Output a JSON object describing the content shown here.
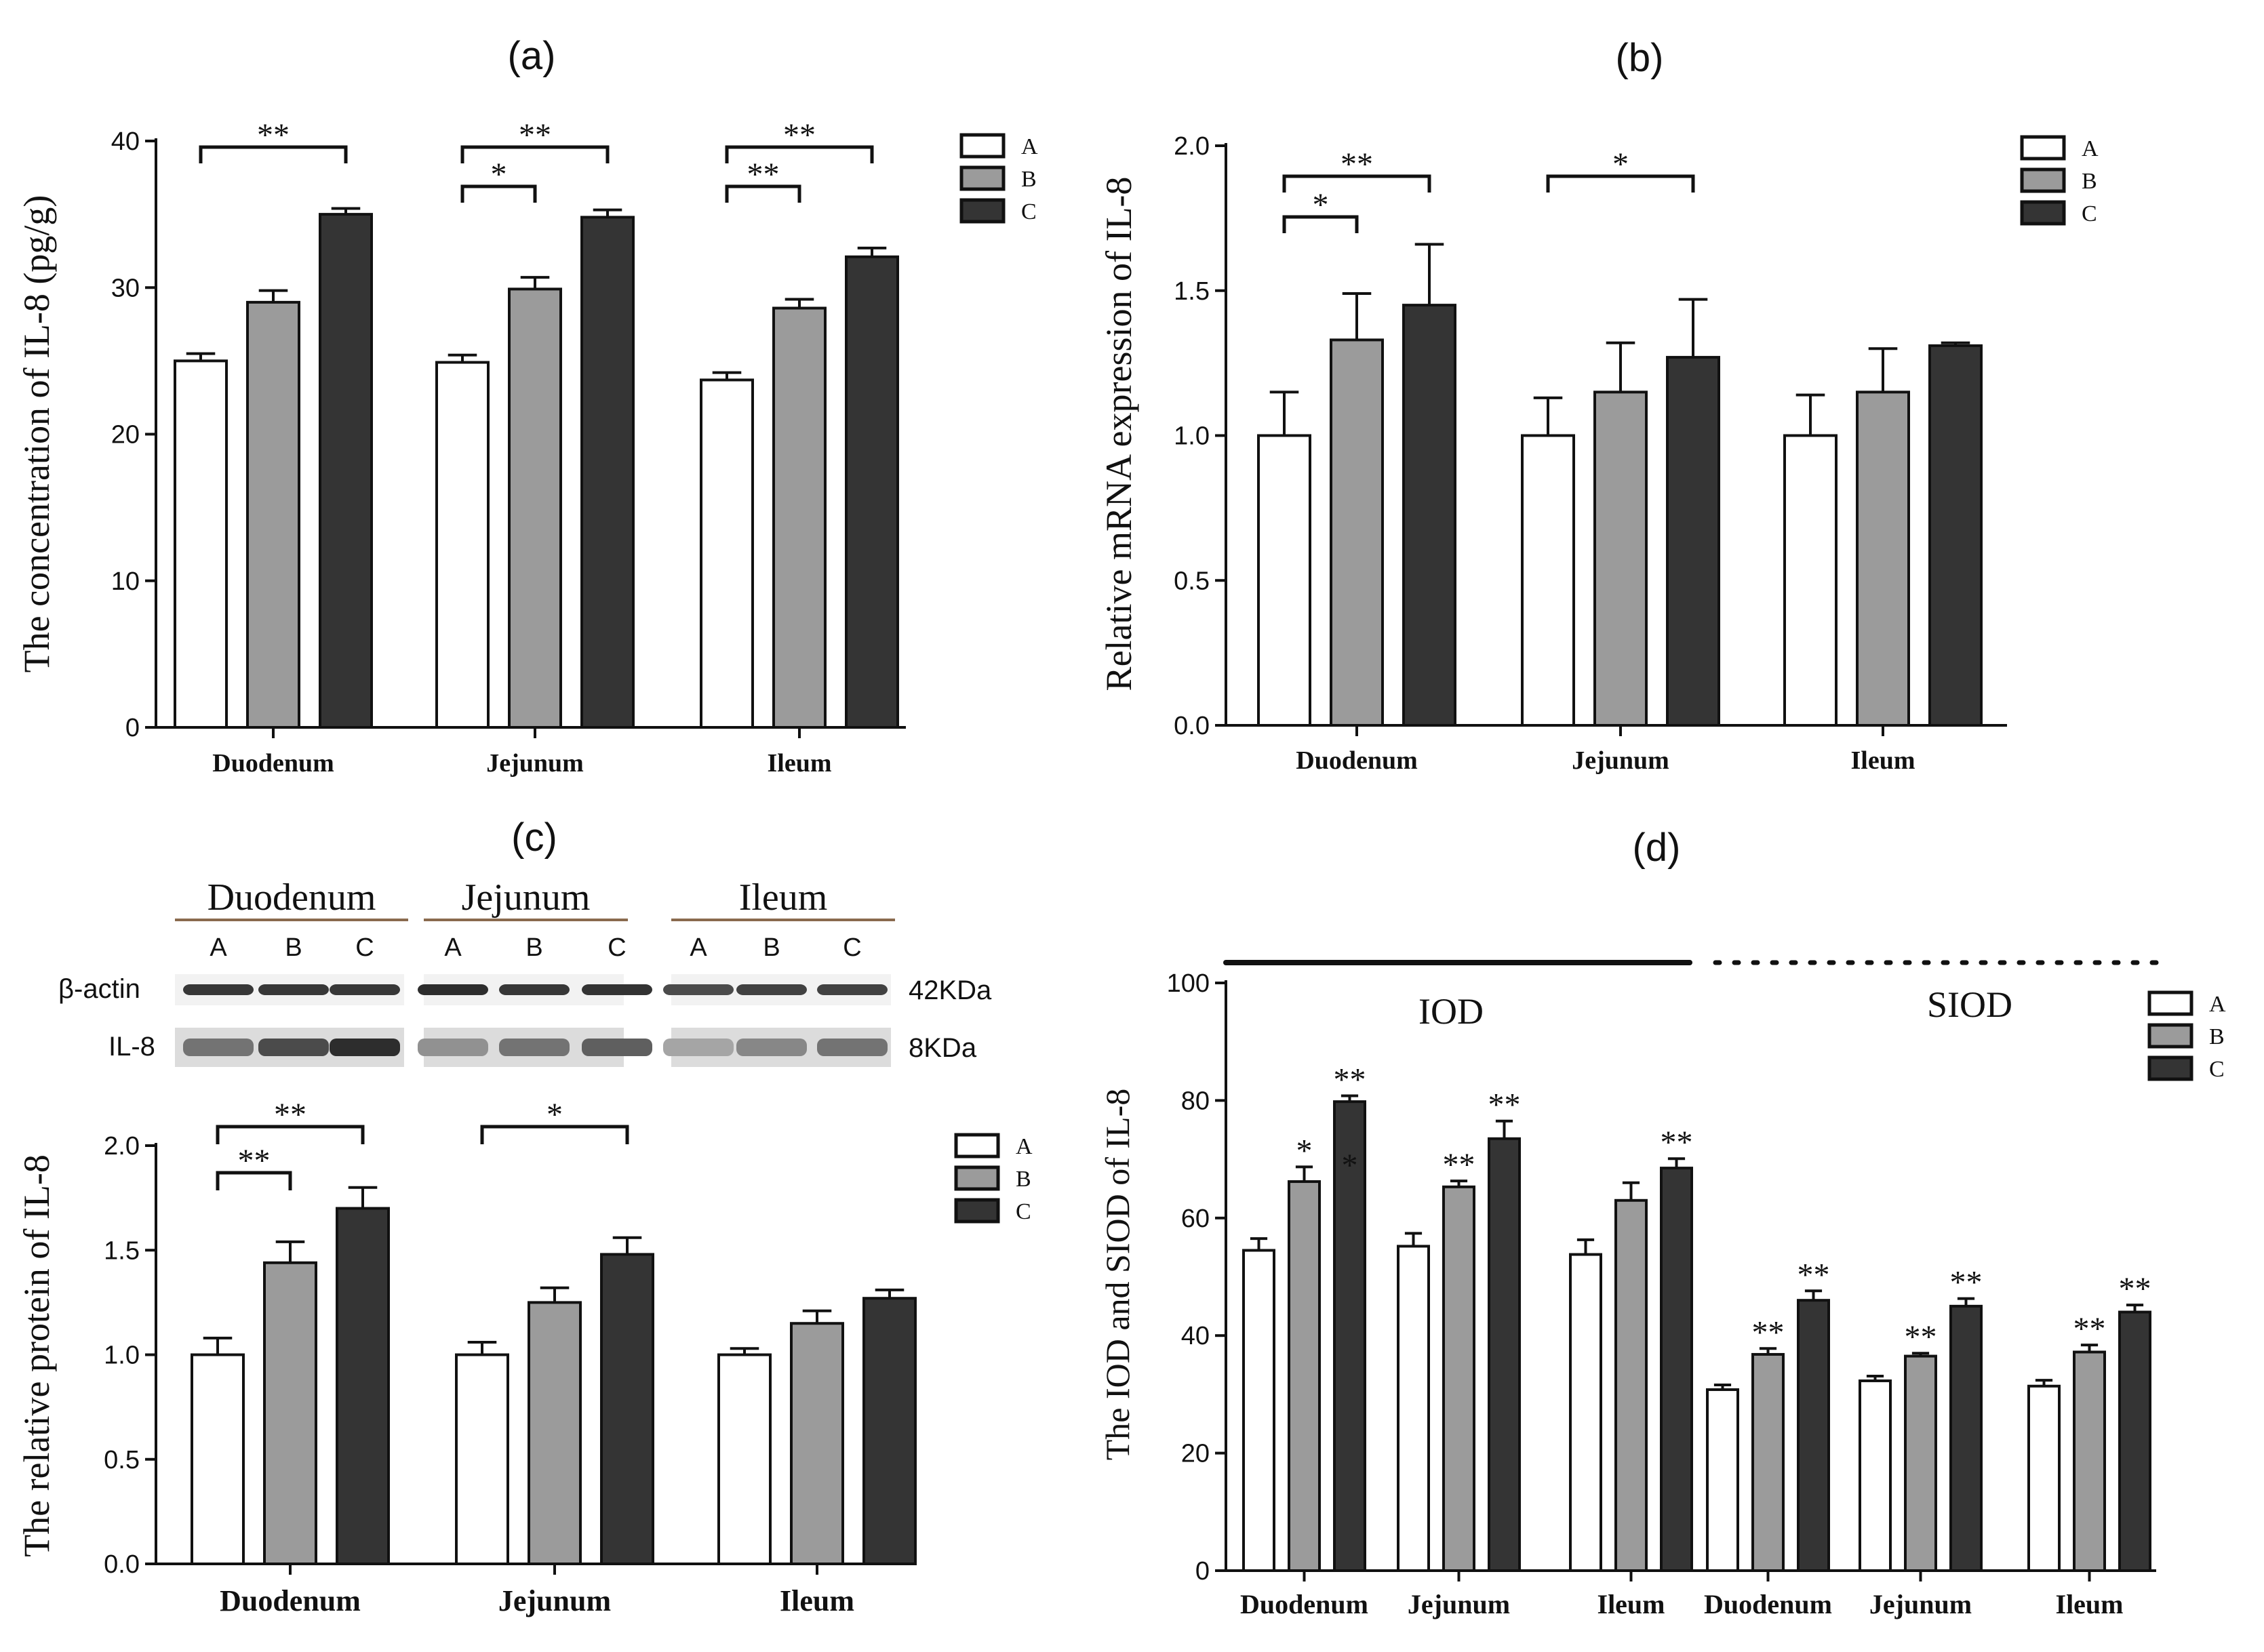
{
  "colors": {
    "A": "#ffffff",
    "B": "#9b9b9b",
    "C": "#343434",
    "axis": "#111111",
    "band": "#222222",
    "membrane": "#cfcfcf",
    "underline": "#8a6a4e"
  },
  "chart_data": [
    {
      "panel": "(a)",
      "type": "bar",
      "categories": [
        "Duodenum",
        "Jejunum",
        "Ileum"
      ],
      "series": [
        {
          "name": "A",
          "values": [
            25.0,
            24.9,
            23.7
          ],
          "errors": [
            0.5,
            0.5,
            0.5
          ]
        },
        {
          "name": "B",
          "values": [
            29.0,
            29.9,
            28.6
          ],
          "errors": [
            0.8,
            0.8,
            0.6
          ]
        },
        {
          "name": "C",
          "values": [
            35.0,
            34.8,
            32.1
          ],
          "errors": [
            0.4,
            0.5,
            0.6
          ]
        }
      ],
      "ylabel": "The concentration of IL-8 (pg/g)",
      "xlabel": "",
      "ylim": [
        0,
        40
      ],
      "yticks": [
        "0",
        "10",
        "20",
        "30",
        "40"
      ],
      "legend": [
        "A",
        "B",
        "C"
      ],
      "legend_position": "top-right",
      "brackets": [
        {
          "group": 0,
          "from": "A",
          "to": "C",
          "label": "**",
          "level": 1
        },
        {
          "group": 1,
          "from": "A",
          "to": "B",
          "label": "*",
          "level": 0
        },
        {
          "group": 1,
          "from": "A",
          "to": "C",
          "label": "**",
          "level": 1
        },
        {
          "group": 2,
          "from": "A",
          "to": "B",
          "label": "**",
          "level": 0
        },
        {
          "group": 2,
          "from": "A",
          "to": "C",
          "label": "**",
          "level": 1
        }
      ]
    },
    {
      "panel": "(b)",
      "type": "bar",
      "categories": [
        "Duodenum",
        "Jejunum",
        "Ileum"
      ],
      "series": [
        {
          "name": "A",
          "values": [
            1.0,
            1.0,
            1.0
          ],
          "errors": [
            0.15,
            0.13,
            0.14
          ]
        },
        {
          "name": "B",
          "values": [
            1.33,
            1.15,
            1.15
          ],
          "errors": [
            0.16,
            0.17,
            0.15
          ]
        },
        {
          "name": "C",
          "values": [
            1.45,
            1.27,
            1.31
          ],
          "errors": [
            0.21,
            0.2,
            0.01
          ]
        }
      ],
      "ylabel": "Relative mRNA expression of IL-8",
      "xlabel": "",
      "ylim": [
        0,
        2.0
      ],
      "yticks": [
        "0.0",
        "0.5",
        "1.0",
        "1.5",
        "2.0"
      ],
      "legend": [
        "A",
        "B",
        "C"
      ],
      "legend_position": "top-right",
      "brackets": [
        {
          "group": 0,
          "from": "A",
          "to": "B",
          "label": "*",
          "level": 0
        },
        {
          "group": 0,
          "from": "A",
          "to": "C",
          "label": "**",
          "level": 1
        },
        {
          "group": 1,
          "from": "A",
          "to": "C",
          "label": "*",
          "level": 1
        }
      ]
    },
    {
      "panel": "(c)",
      "type": "bar",
      "categories": [
        "Duodenum",
        "Jejunum",
        "Ileum"
      ],
      "series": [
        {
          "name": "A",
          "values": [
            1.0,
            1.0,
            1.0
          ],
          "errors": [
            0.08,
            0.06,
            0.03
          ]
        },
        {
          "name": "B",
          "values": [
            1.44,
            1.25,
            1.15
          ],
          "errors": [
            0.1,
            0.07,
            0.06
          ]
        },
        {
          "name": "C",
          "values": [
            1.7,
            1.48,
            1.27
          ],
          "errors": [
            0.1,
            0.08,
            0.04
          ]
        }
      ],
      "ylabel": "The relative protein of IL-8",
      "xlabel": "",
      "ylim": [
        0,
        2.0
      ],
      "yticks": [
        "0.0",
        "0.5",
        "1.0",
        "1.5",
        "2.0"
      ],
      "legend": [
        "A",
        "B",
        "C"
      ],
      "legend_position": "top-right",
      "brackets": [
        {
          "group": 0,
          "from": "A",
          "to": "B",
          "label": "**",
          "level": 0
        },
        {
          "group": 0,
          "from": "A",
          "to": "C",
          "label": "**",
          "level": 1
        },
        {
          "group": 1,
          "from": "A",
          "to": "C",
          "label": "*",
          "level": 1
        }
      ],
      "blot": {
        "tissues": [
          "Duodenum",
          "Jejunum",
          "Ileum"
        ],
        "lanes": [
          "A",
          "B",
          "C"
        ],
        "rows": [
          {
            "label": "β-actin",
            "size": "42KDa",
            "intensity": [
              [
                0.9,
                0.9,
                0.9
              ],
              [
                0.95,
                0.9,
                0.92
              ],
              [
                0.8,
                0.85,
                0.85
              ]
            ]
          },
          {
            "label": "IL-8",
            "size": "8KDa",
            "intensity": [
              [
                0.6,
                0.8,
                0.95
              ],
              [
                0.45,
                0.6,
                0.7
              ],
              [
                0.35,
                0.5,
                0.6
              ]
            ]
          }
        ]
      }
    },
    {
      "panel": "(d)",
      "type": "bar",
      "categories": [
        "Duodenum",
        "Jejunum",
        "Ileum",
        "Duodenum",
        "Jejunum",
        "Ileum"
      ],
      "series": [
        {
          "name": "A",
          "values": [
            54.5,
            55.2,
            53.8,
            30.8,
            32.3,
            31.4
          ],
          "errors": [
            2.0,
            2.2,
            2.5,
            0.8,
            0.8,
            1.0
          ]
        },
        {
          "name": "B",
          "values": [
            66.2,
            65.3,
            63.0,
            36.8,
            36.5,
            37.2
          ],
          "errors": [
            2.5,
            1.0,
            3.0,
            1.0,
            0.5,
            1.2
          ]
        },
        {
          "name": "C",
          "values": [
            79.8,
            73.5,
            68.5,
            46.0,
            45.0,
            44.0
          ],
          "errors": [
            1.0,
            3.0,
            1.6,
            1.6,
            1.3,
            1.2
          ]
        }
      ],
      "ylabel": "The IOD and SIOD of IL-8",
      "xlabel": "",
      "ylim": [
        0,
        100
      ],
      "yticks": [
        "0",
        "20",
        "40",
        "60",
        "80",
        "100"
      ],
      "legend": [
        "A",
        "B",
        "C"
      ],
      "legend_position": "top-right",
      "sections": [
        {
          "label": "IOD",
          "groups": [
            0,
            1,
            2
          ]
        },
        {
          "label": "SIOD",
          "groups": [
            3,
            4,
            5
          ]
        }
      ],
      "annotations": [
        {
          "group": 0,
          "series": "B",
          "text": "*"
        },
        {
          "group": 0,
          "series": "C",
          "text": "**"
        },
        {
          "group": 0,
          "series": "C",
          "text": "*",
          "inside": true
        },
        {
          "group": 1,
          "series": "B",
          "text": "**"
        },
        {
          "group": 1,
          "series": "C",
          "text": "**"
        },
        {
          "group": 2,
          "series": "C",
          "text": "**"
        },
        {
          "group": 3,
          "series": "B",
          "text": "**"
        },
        {
          "group": 3,
          "series": "C",
          "text": "**"
        },
        {
          "group": 4,
          "series": "B",
          "text": "**"
        },
        {
          "group": 4,
          "series": "C",
          "text": "**"
        },
        {
          "group": 5,
          "series": "B",
          "text": "**"
        },
        {
          "group": 5,
          "series": "C",
          "text": "**"
        }
      ]
    }
  ]
}
